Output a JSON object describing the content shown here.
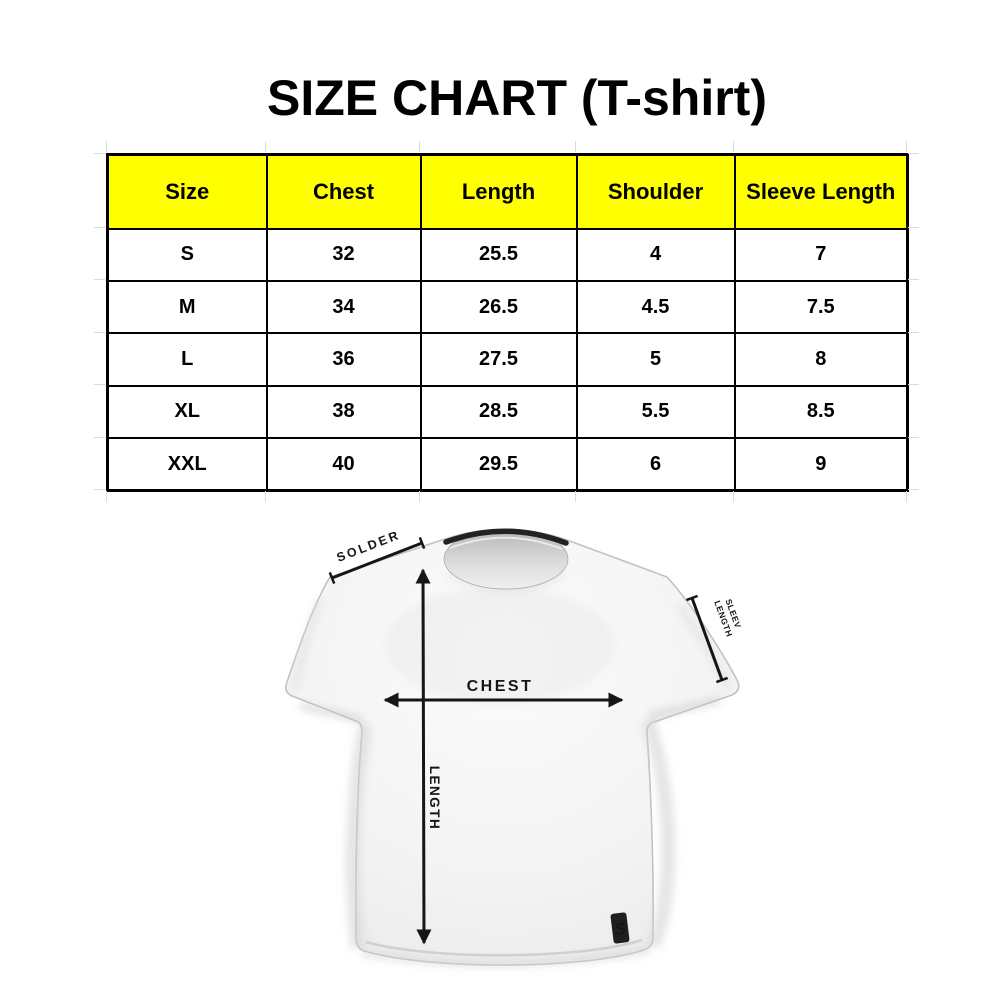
{
  "title": "SIZE CHART (T-shirt)",
  "colors": {
    "header_bg": "#ffff00",
    "table_border": "#000000",
    "annotation": "#161616",
    "shirt_base": "#f4f4f4"
  },
  "chart_data": {
    "type": "table",
    "title": "SIZE CHART (T-shirt)",
    "columns": [
      "Size",
      "Chest",
      "Length",
      "Shoulder",
      "Sleeve Length"
    ],
    "rows": [
      [
        "S",
        "32",
        "25.5",
        "4",
        "7"
      ],
      [
        "M",
        "34",
        "26.5",
        "4.5",
        "7.5"
      ],
      [
        "L",
        "36",
        "27.5",
        "5",
        "8"
      ],
      [
        "XL",
        "38",
        "28.5",
        "5.5",
        "8.5"
      ],
      [
        "XXL",
        "40",
        "29.5",
        "6",
        "9"
      ]
    ]
  },
  "diagram": {
    "shoulder_label": "SOLDER",
    "sleeve_label_line1": "SLEEV",
    "sleeve_label_line2": "LENGTH",
    "chest_label": "CHEST",
    "length_label": "LENGTH",
    "logo_text": "S"
  }
}
